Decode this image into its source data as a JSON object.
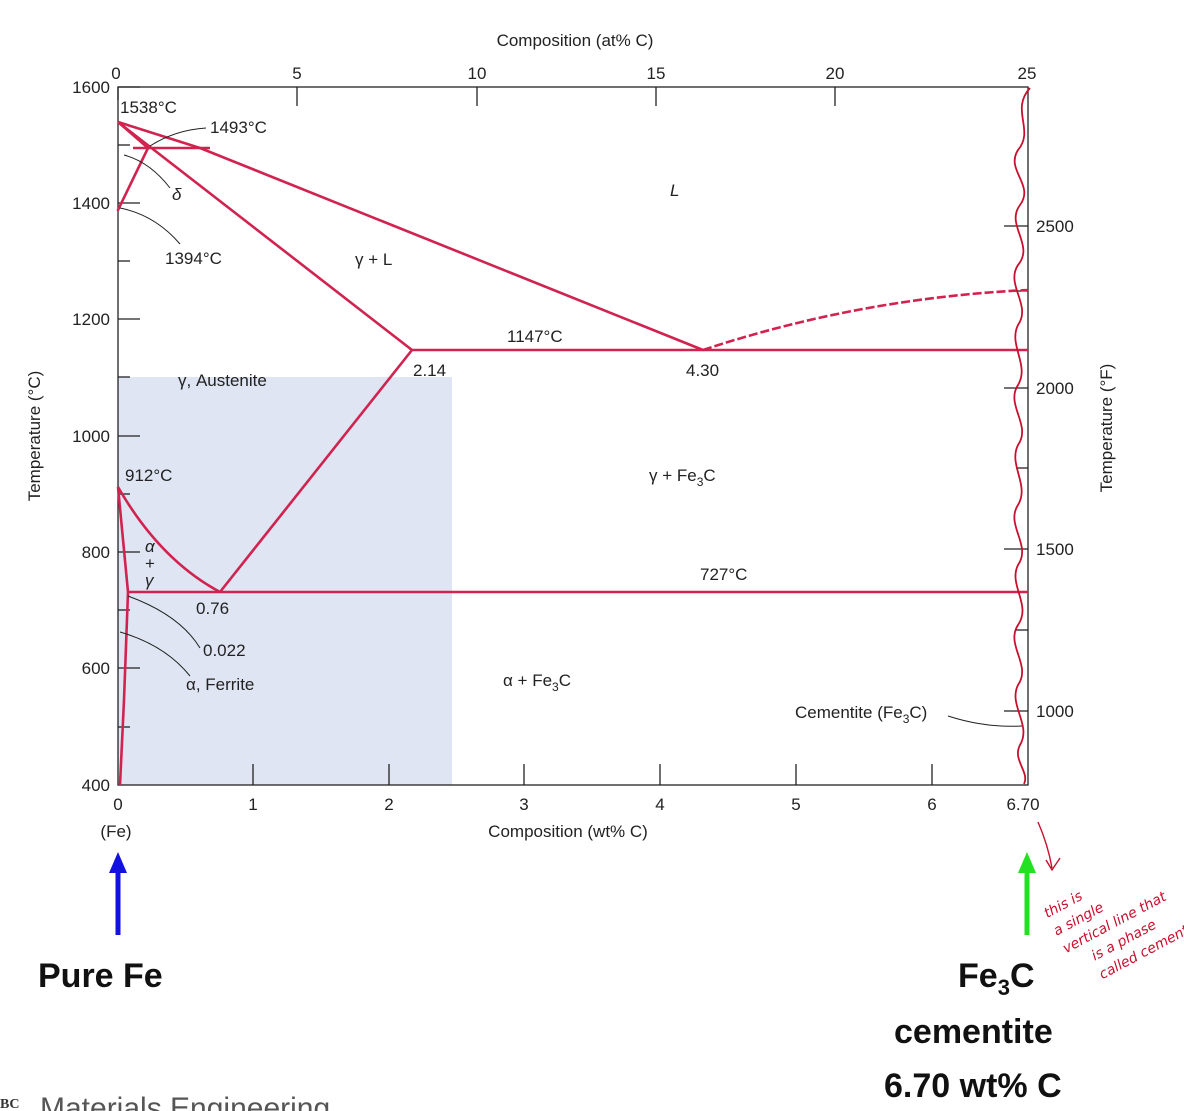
{
  "diagram": {
    "top_axis_title": "Composition (at% C)",
    "top_ticks": [
      "0",
      "5",
      "10",
      "15",
      "20",
      "25"
    ],
    "bottom_axis_title": "Composition (wt% C)",
    "bottom_ticks": [
      "0",
      "1",
      "2",
      "3",
      "4",
      "5",
      "6",
      "6.70"
    ],
    "left_axis_title": "Temperature (°C)",
    "left_ticks": [
      "1600",
      "1400",
      "1200",
      "1000",
      "800",
      "600",
      "400"
    ],
    "right_axis_title": "Temperature (°F)",
    "right_ticks": [
      "2500",
      "2000",
      "1500",
      "1000"
    ],
    "fe_label": "(Fe)",
    "labels": {
      "t1538": "1538°C",
      "t1493": "1493°C",
      "delta": "δ",
      "t1394": "1394°C",
      "liquid": "L",
      "gamma_liquid": "γ + L",
      "t1147": "1147°C",
      "c214": "2.14",
      "c430": "4.30",
      "austenite": "γ, Austenite",
      "t912": "912°C",
      "gamma_fe3c_a": "γ + Fe",
      "gamma_fe3c_sub": "3",
      "gamma_fe3c_b": "C",
      "alpha_gamma_1": "α",
      "alpha_gamma_2": "+",
      "alpha_gamma_3": "γ",
      "t727": "727°C",
      "c076": "0.76",
      "c0022": "0.022",
      "ferrite": "α, Ferrite",
      "alpha_fe3c_a": "α + Fe",
      "alpha_fe3c_sub": "3",
      "alpha_fe3c_b": "C",
      "cementite_a": "Cementite (Fe",
      "cementite_sub": "3",
      "cementite_b": "C)"
    },
    "pure_fe_label": "Pure Fe",
    "fe3c_label_a": "Fe",
    "fe3c_label_sub": "3",
    "fe3c_label_b": "C",
    "cementite_word": "cementite",
    "cementite_comp": "6.70 wt% C",
    "handwritten_note": [
      "this is",
      "a single",
      "vertical line that",
      "is a phase",
      "called cement"
    ],
    "footer_text": "Materials Engineering",
    "colors": {
      "phase_line": "#d0234f",
      "shade": "#dfe5f3",
      "blue_arrow": "#1212e0",
      "green_arrow": "#22e022",
      "annotation": "#c8102e"
    }
  }
}
